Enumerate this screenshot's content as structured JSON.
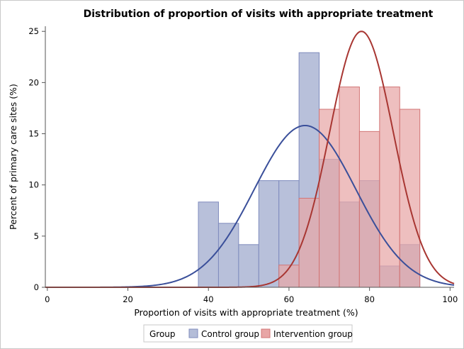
{
  "chart_data": {
    "type": "histogram",
    "title": "Distribution of proportion of visits with appropriate treatment",
    "xlabel": "Proportion of visits with appropriate treatment (%)",
    "ylabel": "Percent of primary care sites (%)",
    "xlim": [
      -0.5,
      101
    ],
    "ylim": [
      0,
      25.5
    ],
    "xticks": [
      0,
      20,
      40,
      60,
      80,
      100
    ],
    "yticks": [
      0,
      5,
      10,
      15,
      20,
      25
    ],
    "bin_width": 5,
    "legend": {
      "title": "Group",
      "position": "bottom-center",
      "items": [
        "Control group",
        "Intervention group"
      ]
    },
    "series": [
      {
        "name": "Control group",
        "fill": "#b4bdd8",
        "edge": "#7f8bbd",
        "curve_color": "#3a4f9a",
        "bins": [
          {
            "start": 37.5,
            "value": 8.33
          },
          {
            "start": 42.5,
            "value": 6.25
          },
          {
            "start": 47.5,
            "value": 4.17
          },
          {
            "start": 52.5,
            "value": 10.42
          },
          {
            "start": 57.5,
            "value": 10.42
          },
          {
            "start": 62.5,
            "value": 22.92
          },
          {
            "start": 67.5,
            "value": 12.5
          },
          {
            "start": 72.5,
            "value": 8.33
          },
          {
            "start": 77.5,
            "value": 10.42
          },
          {
            "start": 82.5,
            "value": 2.08
          },
          {
            "start": 87.5,
            "value": 4.17
          }
        ],
        "normal_curve": {
          "mean": 64,
          "sd": 12.6,
          "peak": 15.8
        }
      },
      {
        "name": "Intervention group",
        "fill": "#e8a6a6",
        "edge": "#d27575",
        "curve_color": "#a83632",
        "bins": [
          {
            "start": 57.5,
            "value": 2.17
          },
          {
            "start": 62.5,
            "value": 8.7
          },
          {
            "start": 67.5,
            "value": 17.39
          },
          {
            "start": 72.5,
            "value": 19.57
          },
          {
            "start": 77.5,
            "value": 15.22
          },
          {
            "start": 82.5,
            "value": 19.57
          },
          {
            "start": 87.5,
            "value": 17.39
          }
        ],
        "normal_curve": {
          "mean": 78,
          "sd": 7.9,
          "peak": 25.0
        }
      }
    ]
  }
}
